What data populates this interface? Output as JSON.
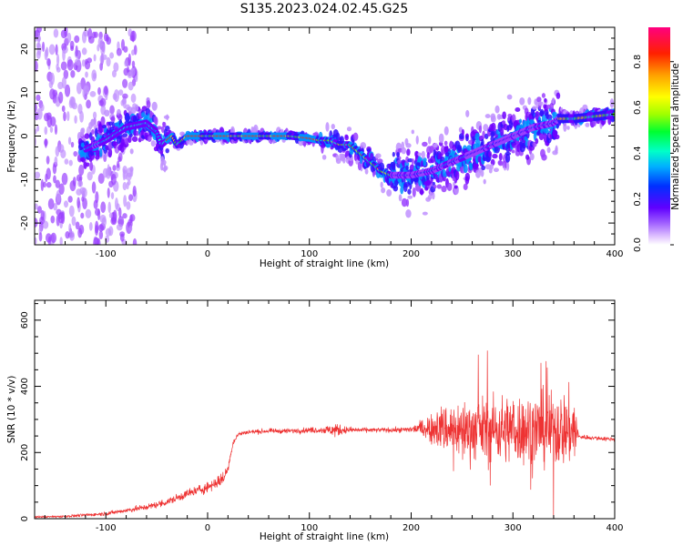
{
  "title": "S135.2023.024.02.45.G25",
  "chart_data": [
    {
      "type": "heatmap",
      "xlabel": "Height of straight line (km)",
      "ylabel": "Frequency (Hz)",
      "xlim": [
        -170,
        400
      ],
      "ylim": [
        -25,
        25
      ],
      "xticks": [
        -100,
        0,
        100,
        200,
        300,
        400
      ],
      "yticks": [
        -20,
        -10,
        0,
        10,
        20
      ],
      "colorbar": {
        "label": "Normalized spectral amplitude",
        "range": [
          0,
          0.95
        ],
        "ticks": [
          0.0,
          0.2,
          0.4,
          0.6,
          0.8
        ]
      },
      "ridge": {
        "x": [
          -120,
          -100,
          -80,
          -60,
          -50,
          -45,
          -40,
          -35,
          -30,
          -25,
          -20,
          -10,
          0,
          20,
          40,
          60,
          80,
          100,
          110,
          120,
          130,
          140,
          150,
          160,
          170,
          180,
          200,
          220,
          240,
          260,
          280,
          300,
          320,
          340,
          345,
          360,
          380,
          400
        ],
        "y": [
          -3,
          -1,
          2,
          3,
          1,
          -2,
          -1,
          0,
          -2,
          -1,
          0,
          0,
          0,
          0,
          0,
          0,
          0,
          -0.5,
          -1,
          -1,
          -2,
          -2,
          -4,
          -6,
          -8,
          -9,
          -9,
          -8,
          -6,
          -4,
          -2,
          0,
          2,
          3,
          4,
          4,
          4.5,
          5
        ]
      }
    },
    {
      "type": "line",
      "xlabel": "Height of straight line (km)",
      "ylabel": "SNR (10 * v/v)",
      "xlim": [
        -170,
        400
      ],
      "ylim": [
        0,
        660
      ],
      "xticks": [
        -100,
        0,
        100,
        200,
        300,
        400
      ],
      "yticks": [
        0,
        200,
        400,
        600
      ],
      "color": "#ee3333",
      "envelope": {
        "x": [
          -170,
          -140,
          -100,
          -80,
          -60,
          -40,
          -20,
          0,
          15,
          20,
          25,
          30,
          40,
          60,
          80,
          100,
          115,
          125,
          135,
          150,
          170,
          190,
          200,
          215,
          225,
          240,
          260,
          280,
          300,
          320,
          340,
          360,
          365,
          375,
          400
        ],
        "center": [
          5,
          7,
          15,
          25,
          35,
          50,
          75,
          95,
          120,
          150,
          230,
          255,
          262,
          265,
          265,
          268,
          268,
          268,
          268,
          268,
          268,
          268,
          270,
          275,
          275,
          270,
          270,
          270,
          270,
          270,
          270,
          270,
          248,
          245,
          240
        ],
        "amplitude": [
          4,
          6,
          10,
          14,
          16,
          20,
          25,
          30,
          35,
          25,
          15,
          12,
          12,
          12,
          14,
          15,
          20,
          40,
          20,
          12,
          12,
          14,
          18,
          60,
          110,
          150,
          170,
          180,
          190,
          200,
          200,
          210,
          12,
          12,
          12
        ]
      }
    }
  ]
}
